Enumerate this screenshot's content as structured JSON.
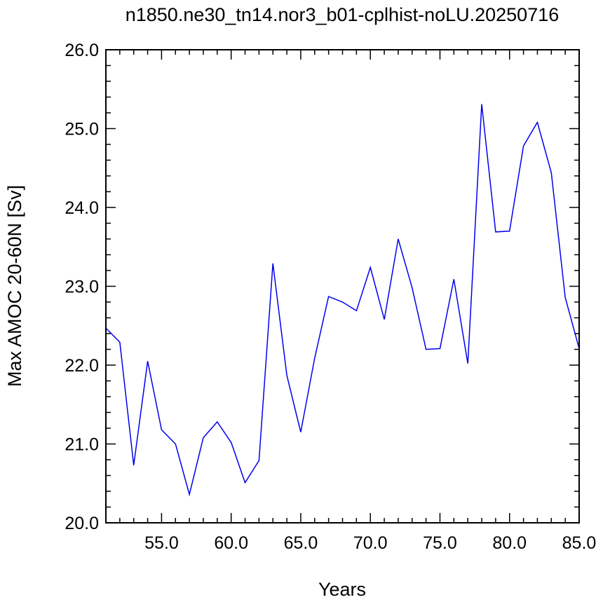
{
  "chart_data": {
    "type": "line",
    "title": "n1850.ne30_tn14.nor3_b01-cplhist-noLU.20250716",
    "xlabel": "Years",
    "ylabel": "Max AMOC 20-60N [Sv]",
    "xlim": [
      51,
      85
    ],
    "ylim": [
      20.0,
      26.0
    ],
    "x_ticks": [
      55,
      60,
      65,
      70,
      75,
      80,
      85
    ],
    "x_tick_labels": [
      "55.0",
      "60.0",
      "65.0",
      "70.0",
      "75.0",
      "80.0",
      "85.0"
    ],
    "y_ticks": [
      20,
      21,
      22,
      23,
      24,
      25,
      26
    ],
    "y_tick_labels": [
      "20.0",
      "21.0",
      "22.0",
      "23.0",
      "24.0",
      "25.0",
      "26.0"
    ],
    "line_color": "#0000ee",
    "grid": false,
    "series": [
      {
        "x": [
          51,
          52,
          53,
          54,
          55,
          56,
          57,
          58,
          59,
          60,
          61,
          62,
          63,
          64,
          65,
          66,
          67,
          68,
          69,
          70,
          71,
          72,
          73,
          74,
          75,
          76,
          77,
          78,
          79,
          80,
          81,
          82,
          83,
          84,
          85
        ],
        "values": [
          22.47,
          22.29,
          20.73,
          22.05,
          21.18,
          21.0,
          20.36,
          21.08,
          21.28,
          21.02,
          20.51,
          20.79,
          23.29,
          21.87,
          21.15,
          22.09,
          22.87,
          22.8,
          22.69,
          23.24,
          22.58,
          23.6,
          22.98,
          22.2,
          22.21,
          23.09,
          22.02,
          25.31,
          23.69,
          23.7,
          24.78,
          25.08,
          24.44,
          22.86,
          22.21
        ]
      }
    ]
  }
}
